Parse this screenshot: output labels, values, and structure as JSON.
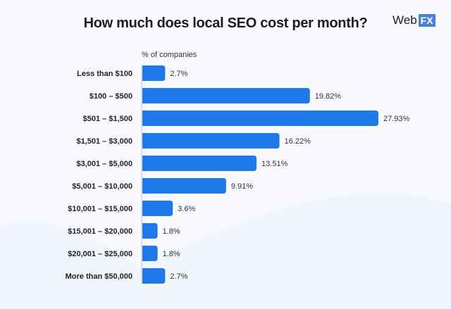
{
  "logo": {
    "text": "Web",
    "badge": "FX"
  },
  "chart_data": {
    "type": "bar",
    "orientation": "horizontal",
    "title": "How much does local SEO cost per month?",
    "xlabel": "% of companies",
    "ylabel": "",
    "categories": [
      "Less than $100",
      "$100 – $500",
      "$501 – $1,500",
      "$1,501 – $3,000",
      "$3,001 – $5,000",
      "$5,001 – $10,000",
      "$10,001 – $15,000",
      "$15,001 – $20,000",
      "$20,001 – $25,000",
      "More than $50,000"
    ],
    "values": [
      2.7,
      19.82,
      27.93,
      16.22,
      13.51,
      9.91,
      3.6,
      1.8,
      1.8,
      2.7
    ],
    "data_labels": [
      "2.7%",
      "19.82%",
      "27.93%",
      "16.22%",
      "13.51%",
      "9.91%",
      "3.6%",
      "1.8%",
      "1.8%",
      "2.7%"
    ],
    "xlim": [
      0,
      28
    ],
    "grid": false,
    "bar_color": "#2079e8"
  }
}
